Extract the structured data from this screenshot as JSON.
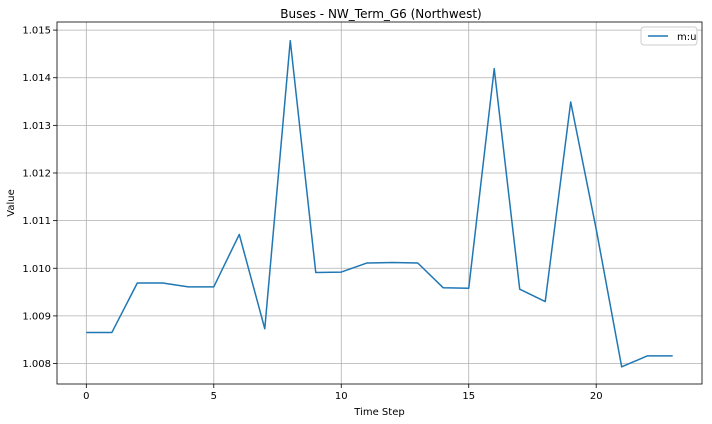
{
  "chart_data": {
    "type": "line",
    "title": "Buses - NW_Term_G6 (Northwest)",
    "xlabel": "Time Step",
    "ylabel": "Value",
    "xlim": [
      -1.15,
      24.15
    ],
    "ylim": [
      1.00757,
      1.01517
    ],
    "x_ticks": [
      0,
      5,
      10,
      15,
      20
    ],
    "x_tick_labels": [
      "0",
      "5",
      "10",
      "15",
      "20"
    ],
    "y_ticks": [
      1.008,
      1.009,
      1.01,
      1.011,
      1.012,
      1.013,
      1.014,
      1.015
    ],
    "y_tick_labels": [
      "1.008",
      "1.009",
      "1.010",
      "1.011",
      "1.012",
      "1.013",
      "1.014",
      "1.015"
    ],
    "grid": true,
    "legend_position": "top-right",
    "series": [
      {
        "name": "m:u",
        "color": "#1f77b4",
        "x": [
          0,
          1,
          2,
          3,
          4,
          5,
          6,
          7,
          8,
          9,
          10,
          11,
          12,
          13,
          14,
          15,
          16,
          17,
          18,
          19,
          20,
          21,
          22,
          23
        ],
        "values": [
          1.00865,
          1.00865,
          1.00969,
          1.00969,
          1.00961,
          1.00961,
          1.01071,
          1.00873,
          1.01478,
          1.00991,
          1.00992,
          1.01011,
          1.01012,
          1.01011,
          1.00959,
          1.00958,
          1.01419,
          1.00956,
          1.0093,
          1.01349,
          1.01082,
          1.00793,
          1.00816,
          1.00816
        ]
      }
    ]
  }
}
